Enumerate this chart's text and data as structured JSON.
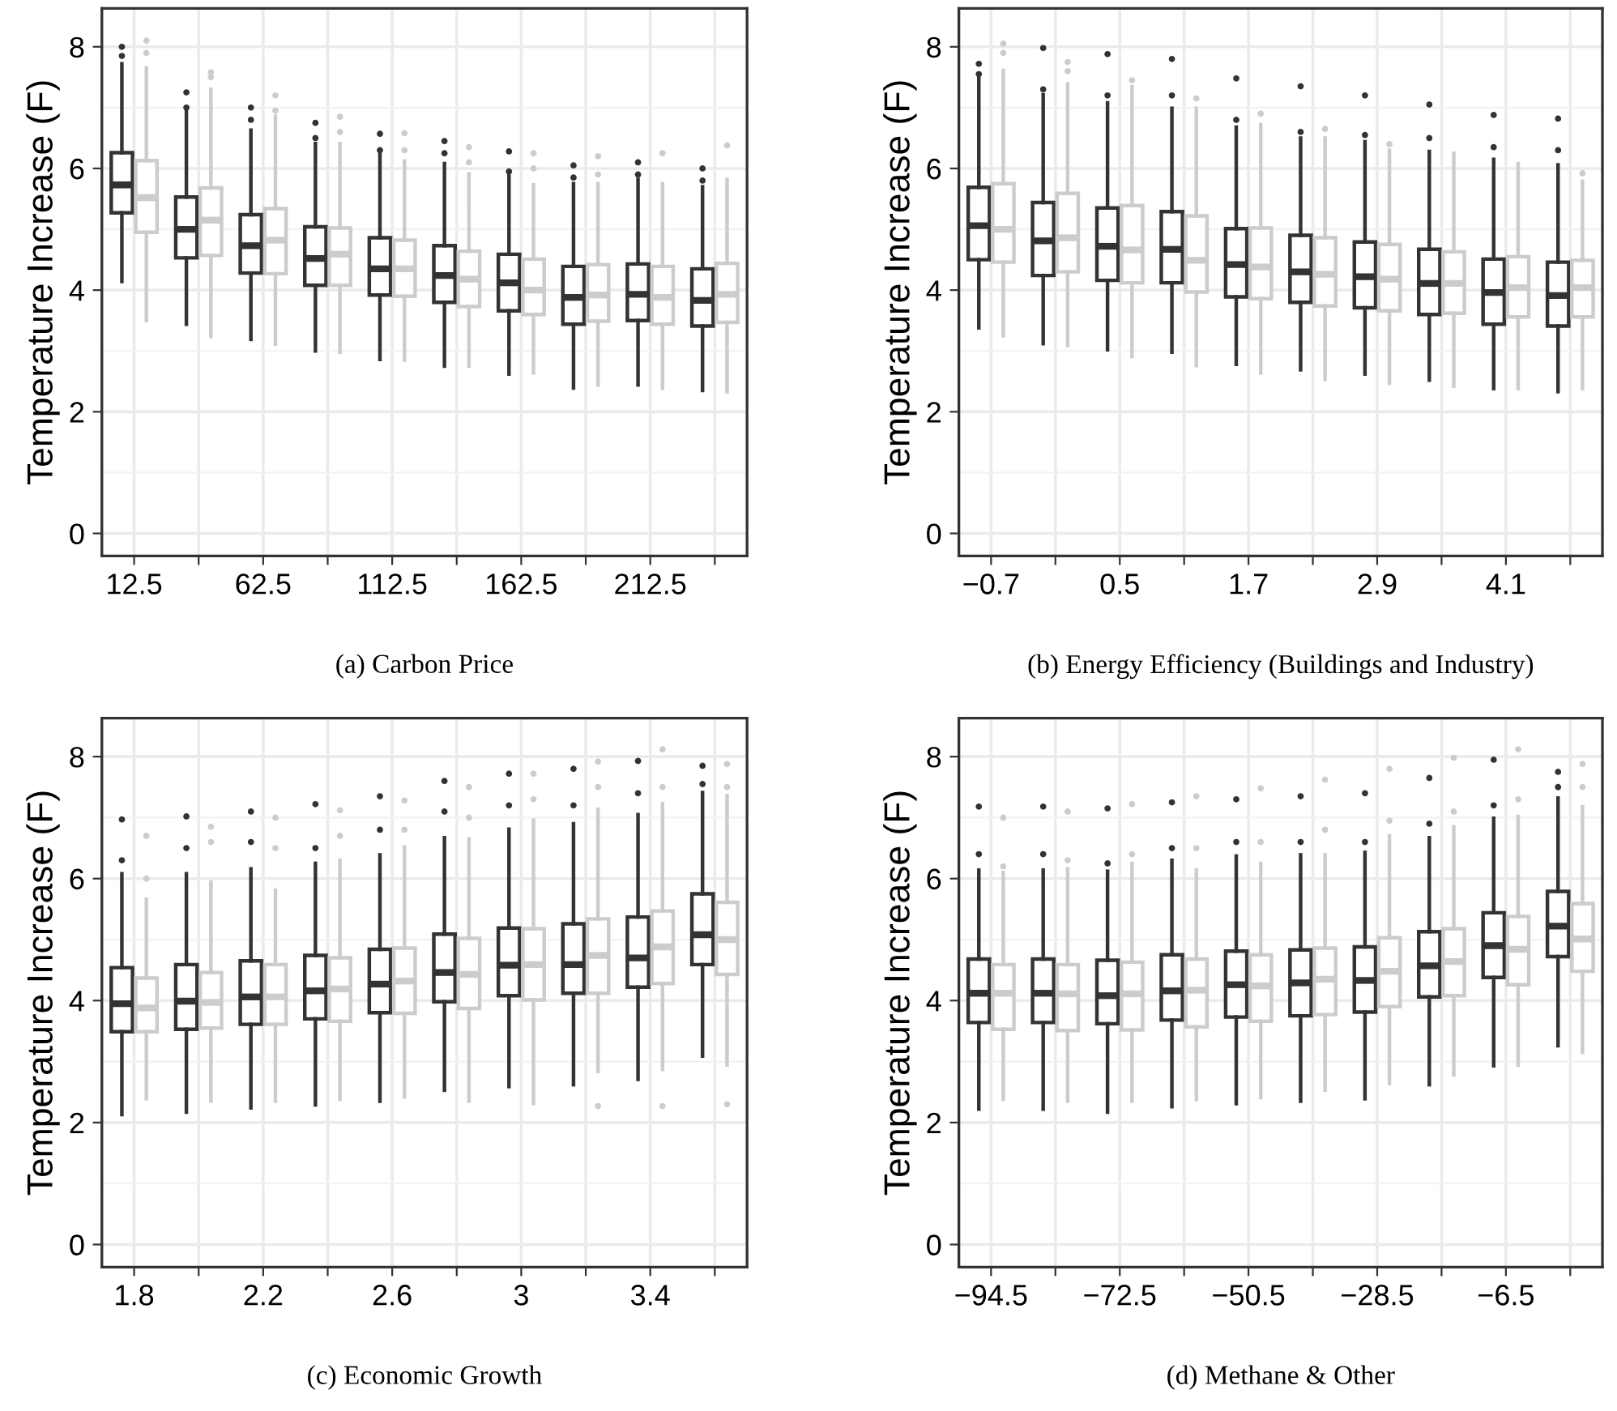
{
  "chart_data": [
    {
      "type": "box",
      "xlabel": "(a) Carbon Price",
      "ylabel": "Temperature Increase (F)",
      "categories": [
        "12.5",
        null,
        "62.5",
        null,
        "112.5",
        null,
        "162.5",
        null,
        "212.5",
        null
      ],
      "ylim": [
        -0.37,
        8.63
      ],
      "yticks": [
        0,
        2,
        4,
        6,
        8
      ],
      "grid": true,
      "series": [
        {
          "color": "#333333",
          "boxes": [
            {
              "low": 4.14,
              "q1": 5.27,
              "median": 5.73,
              "q3": 6.26,
              "high": 7.72,
              "outliers": [
                7.85,
                8.0
              ]
            },
            {
              "low": 3.44,
              "q1": 4.53,
              "median": 5.0,
              "q3": 5.53,
              "high": 6.94,
              "outliers": [
                7.0,
                7.25
              ]
            },
            {
              "low": 3.19,
              "q1": 4.28,
              "median": 4.73,
              "q3": 5.24,
              "high": 6.63,
              "outliers": [
                6.8,
                7.0
              ]
            },
            {
              "low": 3.0,
              "q1": 4.08,
              "median": 4.52,
              "q3": 5.04,
              "high": 6.41,
              "outliers": [
                6.5,
                6.75
              ]
            },
            {
              "low": 2.86,
              "q1": 3.92,
              "median": 4.35,
              "q3": 4.86,
              "high": 6.23,
              "outliers": [
                6.3,
                6.57
              ]
            },
            {
              "low": 2.75,
              "q1": 3.8,
              "median": 4.24,
              "q3": 4.73,
              "high": 6.08,
              "outliers": [
                6.25,
                6.45
              ]
            },
            {
              "low": 2.62,
              "q1": 3.66,
              "median": 4.12,
              "q3": 4.59,
              "high": 5.92,
              "outliers": [
                5.95,
                6.28
              ]
            },
            {
              "low": 2.39,
              "q1": 3.44,
              "median": 3.88,
              "q3": 4.39,
              "high": 5.75,
              "outliers": [
                5.85,
                6.05
              ]
            },
            {
              "low": 2.44,
              "q1": 3.5,
              "median": 3.93,
              "q3": 4.43,
              "high": 5.82,
              "outliers": [
                5.9,
                6.1
              ]
            },
            {
              "low": 2.35,
              "q1": 3.41,
              "median": 3.83,
              "q3": 4.35,
              "high": 5.7,
              "outliers": [
                5.8,
                6.0
              ]
            }
          ]
        },
        {
          "color": "#cccccc",
          "boxes": [
            {
              "low": 3.5,
              "q1": 4.95,
              "median": 5.52,
              "q3": 6.13,
              "high": 7.65,
              "outliers": [
                7.9,
                8.1
              ]
            },
            {
              "low": 3.24,
              "q1": 4.57,
              "median": 5.15,
              "q3": 5.68,
              "high": 7.3,
              "outliers": [
                7.5,
                7.58
              ]
            },
            {
              "low": 3.11,
              "q1": 4.27,
              "median": 4.82,
              "q3": 5.34,
              "high": 6.86,
              "outliers": [
                6.95,
                7.2
              ]
            },
            {
              "low": 2.98,
              "q1": 4.08,
              "median": 4.59,
              "q3": 5.02,
              "high": 6.41,
              "outliers": [
                6.6,
                6.85
              ]
            },
            {
              "low": 2.85,
              "q1": 3.9,
              "median": 4.35,
              "q3": 4.82,
              "high": 6.12,
              "outliers": [
                6.3,
                6.58
              ]
            },
            {
              "low": 2.75,
              "q1": 3.73,
              "median": 4.18,
              "q3": 4.64,
              "high": 5.91,
              "outliers": [
                6.1,
                6.35
              ]
            },
            {
              "low": 2.64,
              "q1": 3.6,
              "median": 4.0,
              "q3": 4.51,
              "high": 5.73,
              "outliers": [
                6.0,
                6.25
              ]
            },
            {
              "low": 2.44,
              "q1": 3.49,
              "median": 3.92,
              "q3": 4.42,
              "high": 5.75,
              "outliers": [
                5.9,
                6.2
              ]
            },
            {
              "low": 2.39,
              "q1": 3.44,
              "median": 3.88,
              "q3": 4.39,
              "high": 5.75,
              "outliers": [
                6.25
              ]
            },
            {
              "low": 2.33,
              "q1": 3.47,
              "median": 3.93,
              "q3": 4.44,
              "high": 5.82,
              "outliers": [
                6.38
              ]
            }
          ]
        }
      ]
    },
    {
      "type": "box",
      "xlabel": "(b) Energy Efficiency (Buildings and Industry)",
      "ylabel": "Temperature Increase (F)",
      "categories": [
        "−0.7",
        null,
        "0.5",
        null,
        "1.7",
        null,
        "2.9",
        null,
        "4.1",
        null
      ],
      "ylim": [
        -0.37,
        8.63
      ],
      "yticks": [
        0,
        2,
        4,
        6,
        8
      ],
      "grid": true,
      "series": [
        {
          "color": "#333333",
          "boxes": [
            {
              "low": 3.38,
              "q1": 4.5,
              "median": 5.06,
              "q3": 5.69,
              "high": 7.49,
              "outliers": [
                7.55,
                7.72
              ]
            },
            {
              "low": 3.12,
              "q1": 4.24,
              "median": 4.81,
              "q3": 5.44,
              "high": 7.21,
              "outliers": [
                7.3,
                7.98
              ]
            },
            {
              "low": 3.02,
              "q1": 4.16,
              "median": 4.72,
              "q3": 5.35,
              "high": 7.08,
              "outliers": [
                7.2,
                7.88
              ]
            },
            {
              "low": 2.98,
              "q1": 4.12,
              "median": 4.67,
              "q3": 5.29,
              "high": 6.99,
              "outliers": [
                7.2,
                7.8
              ]
            },
            {
              "low": 2.78,
              "q1": 3.89,
              "median": 4.42,
              "q3": 5.01,
              "high": 6.68,
              "outliers": [
                6.8,
                7.48
              ]
            },
            {
              "low": 2.69,
              "q1": 3.8,
              "median": 4.3,
              "q3": 4.9,
              "high": 6.5,
              "outliers": [
                6.6,
                7.35
              ]
            },
            {
              "low": 2.62,
              "q1": 3.71,
              "median": 4.22,
              "q3": 4.79,
              "high": 6.44,
              "outliers": [
                6.55,
                7.2
              ]
            },
            {
              "low": 2.52,
              "q1": 3.6,
              "median": 4.11,
              "q3": 4.67,
              "high": 6.28,
              "outliers": [
                6.5,
                7.05
              ]
            },
            {
              "low": 2.38,
              "q1": 3.44,
              "median": 3.96,
              "q3": 4.51,
              "high": 6.15,
              "outliers": [
                6.35,
                6.88
              ]
            },
            {
              "low": 2.33,
              "q1": 3.41,
              "median": 3.91,
              "q3": 4.46,
              "high": 6.06,
              "outliers": [
                6.3,
                6.82
              ]
            }
          ]
        },
        {
          "color": "#cccccc",
          "boxes": [
            {
              "low": 3.25,
              "q1": 4.46,
              "median": 5.0,
              "q3": 5.75,
              "high": 7.61,
              "outliers": [
                7.9,
                8.05
              ]
            },
            {
              "low": 3.09,
              "q1": 4.3,
              "median": 4.86,
              "q3": 5.59,
              "high": 7.39,
              "outliers": [
                7.6,
                7.75
              ]
            },
            {
              "low": 2.91,
              "q1": 4.12,
              "median": 4.66,
              "q3": 5.39,
              "high": 7.34,
              "outliers": [
                7.45
              ]
            },
            {
              "low": 2.76,
              "q1": 3.97,
              "median": 4.49,
              "q3": 5.22,
              "high": 6.99,
              "outliers": [
                7.15
              ]
            },
            {
              "low": 2.64,
              "q1": 3.86,
              "median": 4.38,
              "q3": 5.02,
              "high": 6.72,
              "outliers": [
                6.9
              ]
            },
            {
              "low": 2.53,
              "q1": 3.74,
              "median": 4.26,
              "q3": 4.86,
              "high": 6.5,
              "outliers": [
                6.65
              ]
            },
            {
              "low": 2.47,
              "q1": 3.66,
              "median": 4.18,
              "q3": 4.75,
              "high": 6.3,
              "outliers": [
                6.4
              ]
            },
            {
              "low": 2.42,
              "q1": 3.62,
              "median": 4.11,
              "q3": 4.63,
              "high": 6.25
            },
            {
              "low": 2.38,
              "q1": 3.56,
              "median": 4.04,
              "q3": 4.55,
              "high": 6.08
            },
            {
              "low": 2.38,
              "q1": 3.56,
              "median": 4.04,
              "q3": 4.49,
              "high": 5.79,
              "outliers": [
                5.92
              ]
            }
          ]
        }
      ]
    },
    {
      "type": "box",
      "xlabel": "(c) Economic Growth",
      "ylabel": "Temperature Increase (F)",
      "categories": [
        "1.8",
        null,
        "2.2",
        null,
        "2.6",
        null,
        "3",
        null,
        "3.4",
        null
      ],
      "ylim": [
        -0.37,
        8.63
      ],
      "yticks": [
        0,
        2,
        4,
        6,
        8
      ],
      "grid": true,
      "series": [
        {
          "color": "#333333",
          "boxes": [
            {
              "low": 2.13,
              "q1": 3.49,
              "median": 3.95,
              "q3": 4.54,
              "high": 6.08,
              "outliers": [
                6.3,
                6.97
              ]
            },
            {
              "low": 2.17,
              "q1": 3.53,
              "median": 3.99,
              "q3": 4.59,
              "high": 6.08,
              "outliers": [
                6.5,
                7.02
              ]
            },
            {
              "low": 2.24,
              "q1": 3.61,
              "median": 4.06,
              "q3": 4.65,
              "high": 6.16,
              "outliers": [
                6.6,
                7.1
              ]
            },
            {
              "low": 2.29,
              "q1": 3.7,
              "median": 4.16,
              "q3": 4.74,
              "high": 6.25,
              "outliers": [
                6.5,
                7.22
              ]
            },
            {
              "low": 2.35,
              "q1": 3.8,
              "median": 4.27,
              "q3": 4.84,
              "high": 6.39,
              "outliers": [
                6.8,
                7.35
              ]
            },
            {
              "low": 2.53,
              "q1": 3.98,
              "median": 4.46,
              "q3": 5.09,
              "high": 6.67,
              "outliers": [
                7.1,
                7.6
              ]
            },
            {
              "low": 2.59,
              "q1": 4.08,
              "median": 4.58,
              "q3": 5.19,
              "high": 6.81,
              "outliers": [
                7.2,
                7.72
              ]
            },
            {
              "low": 2.62,
              "q1": 4.12,
              "median": 4.59,
              "q3": 5.26,
              "high": 6.9,
              "outliers": [
                7.2,
                7.8
              ]
            },
            {
              "low": 2.71,
              "q1": 4.22,
              "median": 4.7,
              "q3": 5.37,
              "high": 7.05,
              "outliers": [
                7.4,
                7.93
              ]
            },
            {
              "low": 3.09,
              "q1": 4.59,
              "median": 5.08,
              "q3": 5.75,
              "high": 7.41,
              "outliers": [
                7.55,
                7.85
              ]
            }
          ]
        },
        {
          "color": "#cccccc",
          "boxes": [
            {
              "low": 2.39,
              "q1": 3.49,
              "median": 3.88,
              "q3": 4.37,
              "high": 5.66,
              "outliers": [
                6.0,
                6.7
              ]
            },
            {
              "low": 2.35,
              "q1": 3.55,
              "median": 3.97,
              "q3": 4.46,
              "high": 5.94,
              "outliers": [
                6.6,
                6.85
              ]
            },
            {
              "low": 2.35,
              "q1": 3.61,
              "median": 4.06,
              "q3": 4.59,
              "high": 5.81,
              "outliers": [
                6.5,
                7.0
              ]
            },
            {
              "low": 2.38,
              "q1": 3.66,
              "median": 4.19,
              "q3": 4.7,
              "high": 6.3,
              "outliers": [
                6.7,
                7.12
              ]
            },
            {
              "low": 2.42,
              "q1": 3.79,
              "median": 4.32,
              "q3": 4.86,
              "high": 6.52,
              "outliers": [
                6.8,
                7.28
              ]
            },
            {
              "low": 2.35,
              "q1": 3.87,
              "median": 4.43,
              "q3": 5.02,
              "high": 6.65,
              "outliers": [
                7.0,
                7.5
              ]
            },
            {
              "low": 2.31,
              "q1": 4.01,
              "median": 4.59,
              "q3": 5.18,
              "high": 6.96,
              "outliers": [
                7.3,
                7.72
              ]
            },
            {
              "low": 2.84,
              "q1": 4.12,
              "median": 4.74,
              "q3": 5.34,
              "high": 7.14,
              "outliers": [
                2.27,
                7.5,
                7.92
              ]
            },
            {
              "low": 2.87,
              "q1": 4.28,
              "median": 4.88,
              "q3": 5.47,
              "high": 7.23,
              "outliers": [
                2.27,
                7.5,
                8.12
              ]
            },
            {
              "low": 2.94,
              "q1": 4.43,
              "median": 5.0,
              "q3": 5.61,
              "high": 7.36,
              "outliers": [
                2.3,
                7.5,
                7.88
              ]
            }
          ]
        }
      ]
    },
    {
      "type": "box",
      "xlabel": "(d) Methane & Other",
      "ylabel": "Temperature Increase (F)",
      "categories": [
        "−94.5",
        null,
        "−72.5",
        null,
        "−50.5",
        null,
        "−28.5",
        null,
        "−6.5",
        null
      ],
      "ylim": [
        -0.37,
        8.63
      ],
      "yticks": [
        0,
        2,
        4,
        6,
        8
      ],
      "grid": true,
      "series": [
        {
          "color": "#333333",
          "boxes": [
            {
              "low": 2.22,
              "q1": 3.64,
              "median": 4.12,
              "q3": 4.68,
              "high": 6.14,
              "outliers": [
                6.4,
                7.18
              ]
            },
            {
              "low": 2.22,
              "q1": 3.64,
              "median": 4.12,
              "q3": 4.68,
              "high": 6.14,
              "outliers": [
                6.4,
                7.18
              ]
            },
            {
              "low": 2.17,
              "q1": 3.62,
              "median": 4.08,
              "q3": 4.66,
              "high": 6.12,
              "outliers": [
                6.25,
                7.15
              ]
            },
            {
              "low": 2.26,
              "q1": 3.68,
              "median": 4.16,
              "q3": 4.75,
              "high": 6.3,
              "outliers": [
                6.5,
                7.25
              ]
            },
            {
              "low": 2.31,
              "q1": 3.73,
              "median": 4.26,
              "q3": 4.81,
              "high": 6.37,
              "outliers": [
                6.6,
                7.3
              ]
            },
            {
              "low": 2.35,
              "q1": 3.75,
              "median": 4.29,
              "q3": 4.83,
              "high": 6.39,
              "outliers": [
                6.6,
                7.35
              ]
            },
            {
              "low": 2.39,
              "q1": 3.81,
              "median": 4.33,
              "q3": 4.88,
              "high": 6.43,
              "outliers": [
                6.6,
                7.4
              ]
            },
            {
              "low": 2.62,
              "q1": 4.06,
              "median": 4.57,
              "q3": 5.13,
              "high": 6.67,
              "outliers": [
                6.9,
                7.65
              ]
            },
            {
              "low": 2.93,
              "q1": 4.38,
              "median": 4.9,
              "q3": 5.44,
              "high": 6.99,
              "outliers": [
                7.2,
                7.95
              ]
            },
            {
              "low": 3.26,
              "q1": 4.72,
              "median": 5.22,
              "q3": 5.79,
              "high": 7.32,
              "outliers": [
                7.5,
                7.75
              ]
            }
          ]
        },
        {
          "color": "#cccccc",
          "boxes": [
            {
              "low": 2.38,
              "q1": 3.53,
              "median": 4.12,
              "q3": 4.59,
              "high": 6.1,
              "outliers": [
                6.2,
                7.0
              ]
            },
            {
              "low": 2.35,
              "q1": 3.51,
              "median": 4.11,
              "q3": 4.59,
              "high": 6.16,
              "outliers": [
                6.3,
                7.1
              ]
            },
            {
              "low": 2.35,
              "q1": 3.52,
              "median": 4.11,
              "q3": 4.63,
              "high": 6.25,
              "outliers": [
                6.4,
                7.22
              ]
            },
            {
              "low": 2.38,
              "q1": 3.57,
              "median": 4.17,
              "q3": 4.68,
              "high": 6.14,
              "outliers": [
                6.5,
                7.35
              ]
            },
            {
              "low": 2.41,
              "q1": 3.66,
              "median": 4.24,
              "q3": 4.75,
              "high": 6.25,
              "outliers": [
                6.6,
                7.48
              ]
            },
            {
              "low": 2.53,
              "q1": 3.77,
              "median": 4.35,
              "q3": 4.86,
              "high": 6.39,
              "outliers": [
                6.8,
                7.62
              ]
            },
            {
              "low": 2.64,
              "q1": 3.9,
              "median": 4.48,
              "q3": 5.03,
              "high": 6.7,
              "outliers": [
                6.95,
                7.8
              ]
            },
            {
              "low": 2.78,
              "q1": 4.08,
              "median": 4.64,
              "q3": 5.18,
              "high": 6.85,
              "outliers": [
                7.1,
                7.98
              ]
            },
            {
              "low": 2.94,
              "q1": 4.26,
              "median": 4.84,
              "q3": 5.38,
              "high": 7.02,
              "outliers": [
                7.3,
                8.12
              ]
            },
            {
              "low": 3.15,
              "q1": 4.48,
              "median": 5.01,
              "q3": 5.59,
              "high": 7.18,
              "outliers": [
                7.5,
                7.88
              ]
            }
          ]
        }
      ]
    }
  ]
}
